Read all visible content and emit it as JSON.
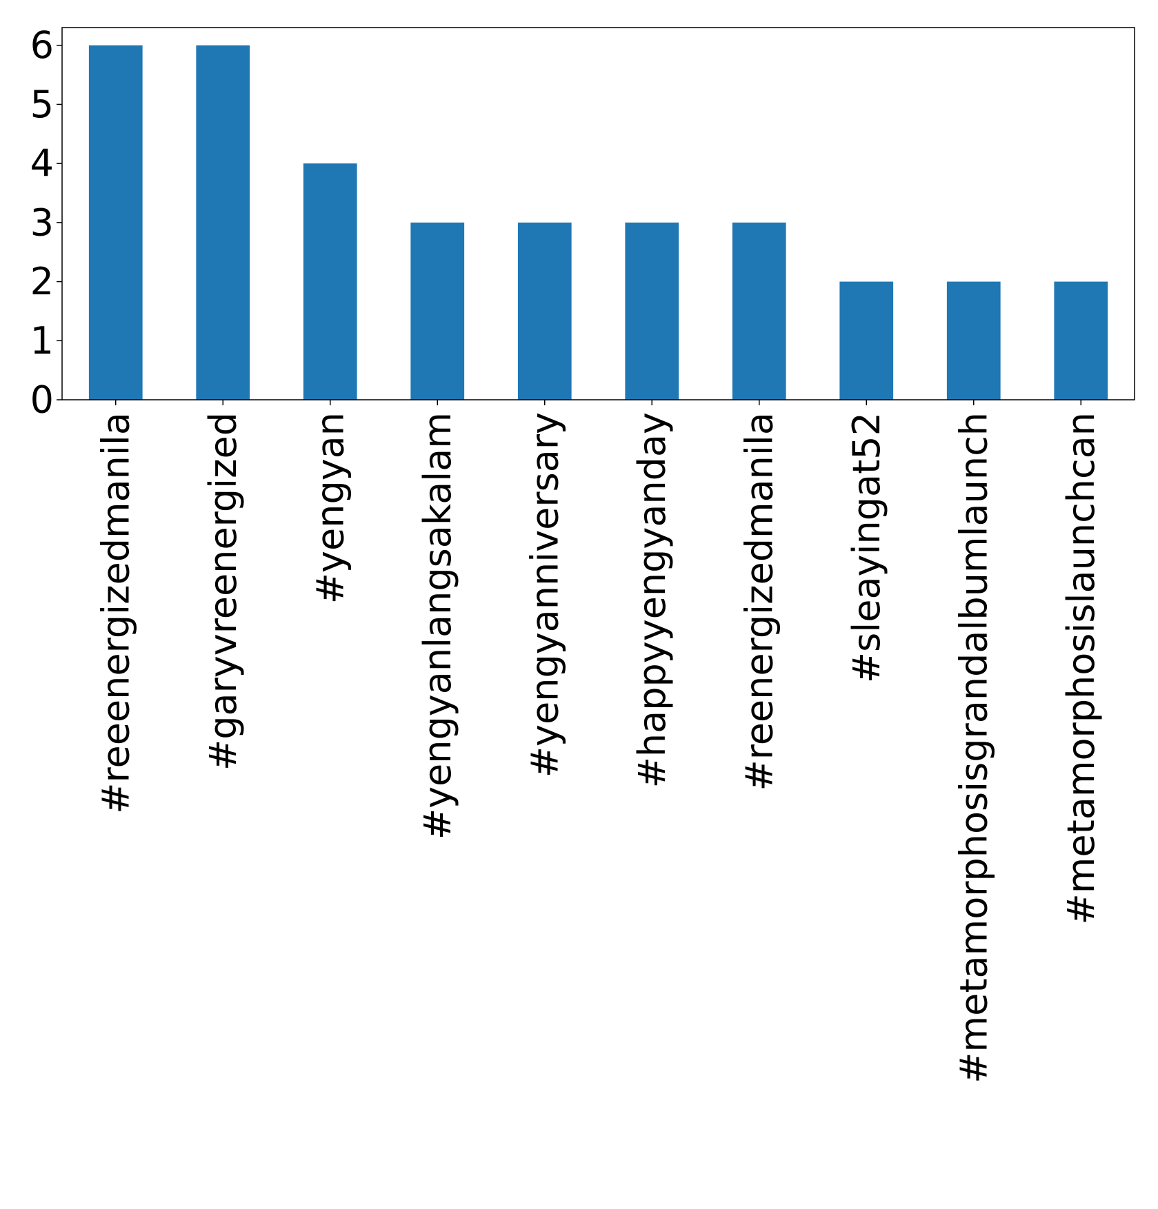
{
  "chart_data": {
    "type": "bar",
    "title": "",
    "xlabel": "",
    "ylabel": "",
    "categories": [
      "#reeenergizedmanila",
      "#garyvreenergized",
      "#yengyan",
      "#yengyanlangsakalam",
      "#yengyanniversary",
      "#happyyengyanday",
      "#reenergizedmanila",
      "#sleayingat52",
      "#metamorphosisgrandalbumlaunch",
      "#metamorphosislaunchcan"
    ],
    "values": [
      6,
      6,
      4,
      3,
      3,
      3,
      3,
      2,
      2,
      2
    ],
    "yticks": [
      0,
      1,
      2,
      3,
      4,
      5,
      6
    ],
    "ylim": [
      0,
      6.3
    ],
    "grid": false,
    "legend": "none",
    "bar_color": "#1f77b4"
  }
}
